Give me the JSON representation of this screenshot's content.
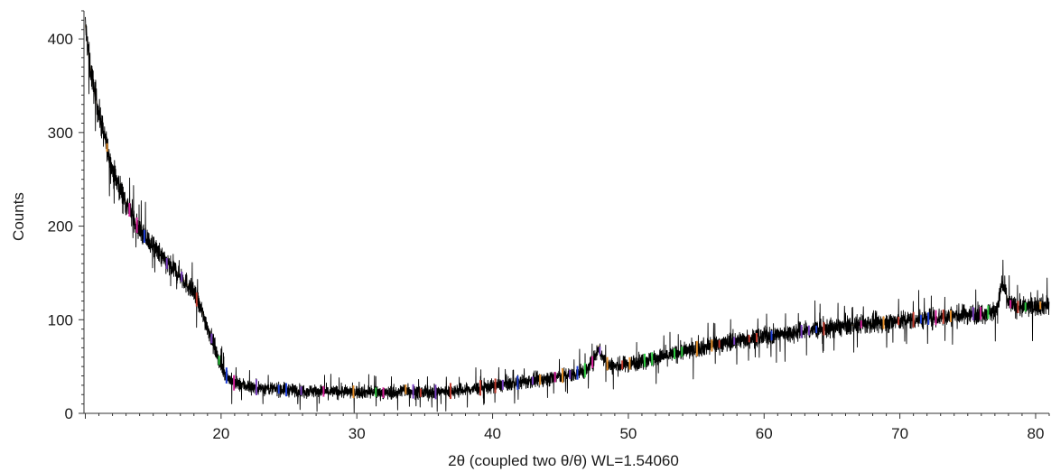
{
  "chart_data": {
    "type": "line",
    "title": "",
    "xlabel": "2θ (coupled two θ/θ) WL=1.54060",
    "ylabel": "Counts",
    "xlim": [
      9.9,
      81
    ],
    "ylim": [
      0,
      430
    ],
    "xticks": [
      20,
      30,
      40,
      50,
      60,
      70,
      80
    ],
    "yticks": [
      0,
      100,
      200,
      300,
      400
    ],
    "grid": false,
    "legend": "none",
    "noise_amplitude": 9,
    "colors": {
      "trace": "#000000",
      "axis": "#333333",
      "phase_markers": [
        "#2ecc40",
        "#1f3fd6",
        "#d6209b",
        "#c0392b",
        "#e8912d",
        "#7a3fc2"
      ]
    },
    "series": [
      {
        "x": [
          10,
          10.3,
          10.6,
          11,
          11.5,
          12,
          13,
          14,
          15,
          16,
          17,
          18,
          18.5,
          19,
          19.5,
          20,
          20.5,
          21,
          22,
          23,
          24,
          25,
          26,
          27,
          28,
          29,
          30,
          31,
          32,
          33,
          33.5,
          34,
          34.5,
          35,
          36,
          37,
          38,
          39,
          40,
          41,
          42,
          43,
          44,
          45,
          46,
          47,
          47.5,
          47.8,
          48,
          48.5,
          49,
          50,
          51,
          52,
          53,
          54,
          55,
          56,
          57,
          58,
          59,
          60,
          61,
          62,
          63,
          64,
          65,
          66,
          67,
          68,
          69,
          70,
          71,
          72,
          73,
          74,
          75,
          76,
          77,
          77.3,
          77.5,
          77.8,
          78,
          78.5,
          79,
          80,
          81
        ],
        "y": [
          415,
          375,
          350,
          320,
          290,
          260,
          225,
          195,
          178,
          160,
          148,
          128,
          112,
          92,
          72,
          50,
          38,
          32,
          29,
          27,
          26,
          25,
          24,
          24,
          23,
          23,
          23,
          23,
          22,
          22,
          26,
          24,
          22,
          22,
          23,
          24,
          25,
          27,
          29,
          31,
          33,
          35,
          37,
          40,
          42,
          47,
          58,
          72,
          62,
          52,
          50,
          53,
          56,
          59,
          62,
          66,
          69,
          72,
          75,
          78,
          80,
          82,
          84,
          86,
          88,
          90,
          91,
          93,
          95,
          96,
          97,
          99,
          100,
          101,
          103,
          104,
          106,
          107,
          109,
          120,
          138,
          130,
          118,
          114,
          113,
          115,
          116
        ]
      }
    ]
  }
}
